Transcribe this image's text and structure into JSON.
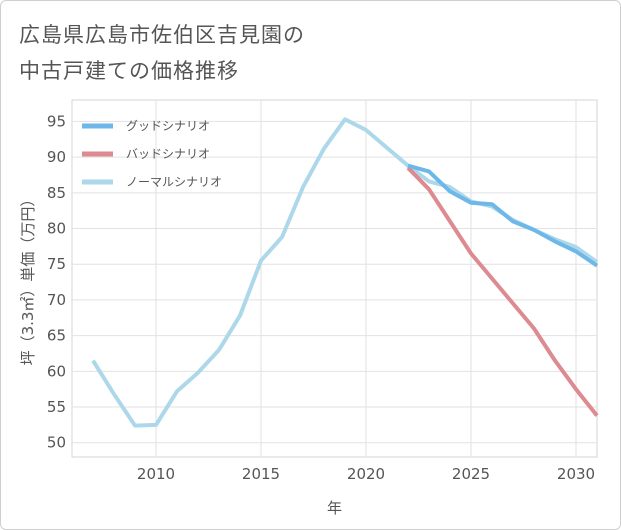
{
  "title_line1": "広島県広島市佐伯区吉見園の",
  "title_line2": "中古戸建ての価格推移",
  "chart_data": {
    "type": "line",
    "title": "広島県広島市佐伯区吉見園の中古戸建ての価格推移",
    "xlabel": "年",
    "ylabel": "坪（3.3㎡）単価（万円）",
    "xlim": [
      2006,
      2031
    ],
    "ylim": [
      48,
      98
    ],
    "xticks": [
      2010,
      2015,
      2020,
      2025,
      2030
    ],
    "yticks": [
      50,
      55,
      60,
      65,
      70,
      75,
      80,
      85,
      90,
      95
    ],
    "grid": true,
    "legend_position": "top-left",
    "series": [
      {
        "name": "グッドシナリオ",
        "color": "#6db8e8",
        "x": [
          2022,
          2023,
          2024,
          2025,
          2026,
          2027,
          2028,
          2029,
          2030,
          2031
        ],
        "y": [
          88.8,
          88.0,
          85.2,
          83.6,
          83.4,
          81.0,
          79.8,
          78.2,
          76.8,
          74.8
        ]
      },
      {
        "name": "バッドシナリオ",
        "color": "#dd8a90",
        "x": [
          2022,
          2023,
          2024,
          2025,
          2026,
          2027,
          2028,
          2029,
          2030,
          2031
        ],
        "y": [
          88.5,
          85.5,
          81.0,
          76.5,
          73.0,
          69.5,
          66.0,
          61.5,
          57.5,
          53.8
        ]
      },
      {
        "name": "ノーマルシナリオ",
        "color": "#add8ea",
        "x": [
          2007,
          2008,
          2009,
          2010,
          2011,
          2012,
          2013,
          2014,
          2015,
          2016,
          2017,
          2018,
          2019,
          2020,
          2021,
          2022,
          2023,
          2024,
          2025,
          2026,
          2027,
          2028,
          2029,
          2030,
          2031
        ],
        "y": [
          61.5,
          56.8,
          52.4,
          52.5,
          57.2,
          59.8,
          63.0,
          67.8,
          75.5,
          78.8,
          85.8,
          91.2,
          95.3,
          93.8,
          91.3,
          88.8,
          86.6,
          85.8,
          83.8,
          83.1,
          81.2,
          79.8,
          78.5,
          77.4,
          75.3
        ]
      }
    ]
  }
}
